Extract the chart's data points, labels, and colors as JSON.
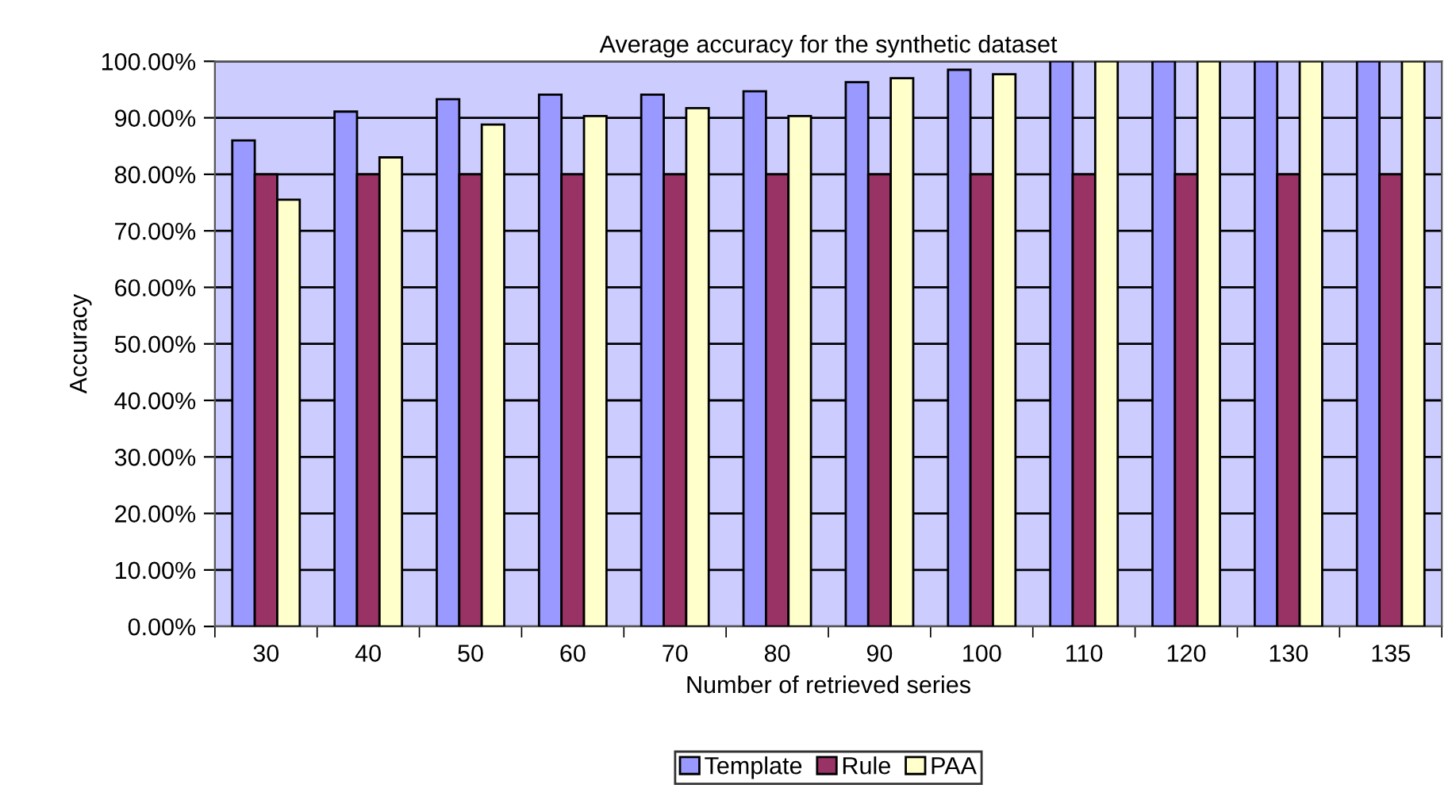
{
  "chart_data": {
    "type": "bar",
    "title": "Average accuracy for the synthetic dataset",
    "xlabel": "Number of retrieved series",
    "ylabel": "Accuracy",
    "categories": [
      "30",
      "40",
      "50",
      "60",
      "70",
      "80",
      "90",
      "100",
      "110",
      "120",
      "130",
      "135"
    ],
    "series": [
      {
        "name": "Template",
        "color": "#9999ff",
        "values": [
          86,
          91.1,
          93.3,
          94.1,
          94.1,
          94.7,
          96.3,
          98.5,
          100,
          100,
          100,
          100
        ]
      },
      {
        "name": "Rule",
        "color": "#993366",
        "values": [
          80,
          80,
          80,
          80,
          80,
          80,
          80,
          80,
          80,
          80,
          80,
          80
        ]
      },
      {
        "name": "PAA",
        "color": "#ffffcc",
        "values": [
          75.5,
          83,
          88.8,
          90.3,
          91.7,
          90.3,
          97,
          97.7,
          100,
          100,
          100,
          100
        ]
      }
    ],
    "ylim": [
      0,
      100
    ],
    "yticks": [
      {
        "value": 0,
        "label": "0.00%"
      },
      {
        "value": 10,
        "label": "10.00%"
      },
      {
        "value": 20,
        "label": "20.00%"
      },
      {
        "value": 30,
        "label": "30.00%"
      },
      {
        "value": 40,
        "label": "40.00%"
      },
      {
        "value": 50,
        "label": "50.00%"
      },
      {
        "value": 60,
        "label": "60.00%"
      },
      {
        "value": 70,
        "label": "70.00%"
      },
      {
        "value": 80,
        "label": "80.00%"
      },
      {
        "value": 90,
        "label": "90.00%"
      },
      {
        "value": 100,
        "label": "100.00%"
      }
    ],
    "grid": "y",
    "legend": "bottom"
  }
}
